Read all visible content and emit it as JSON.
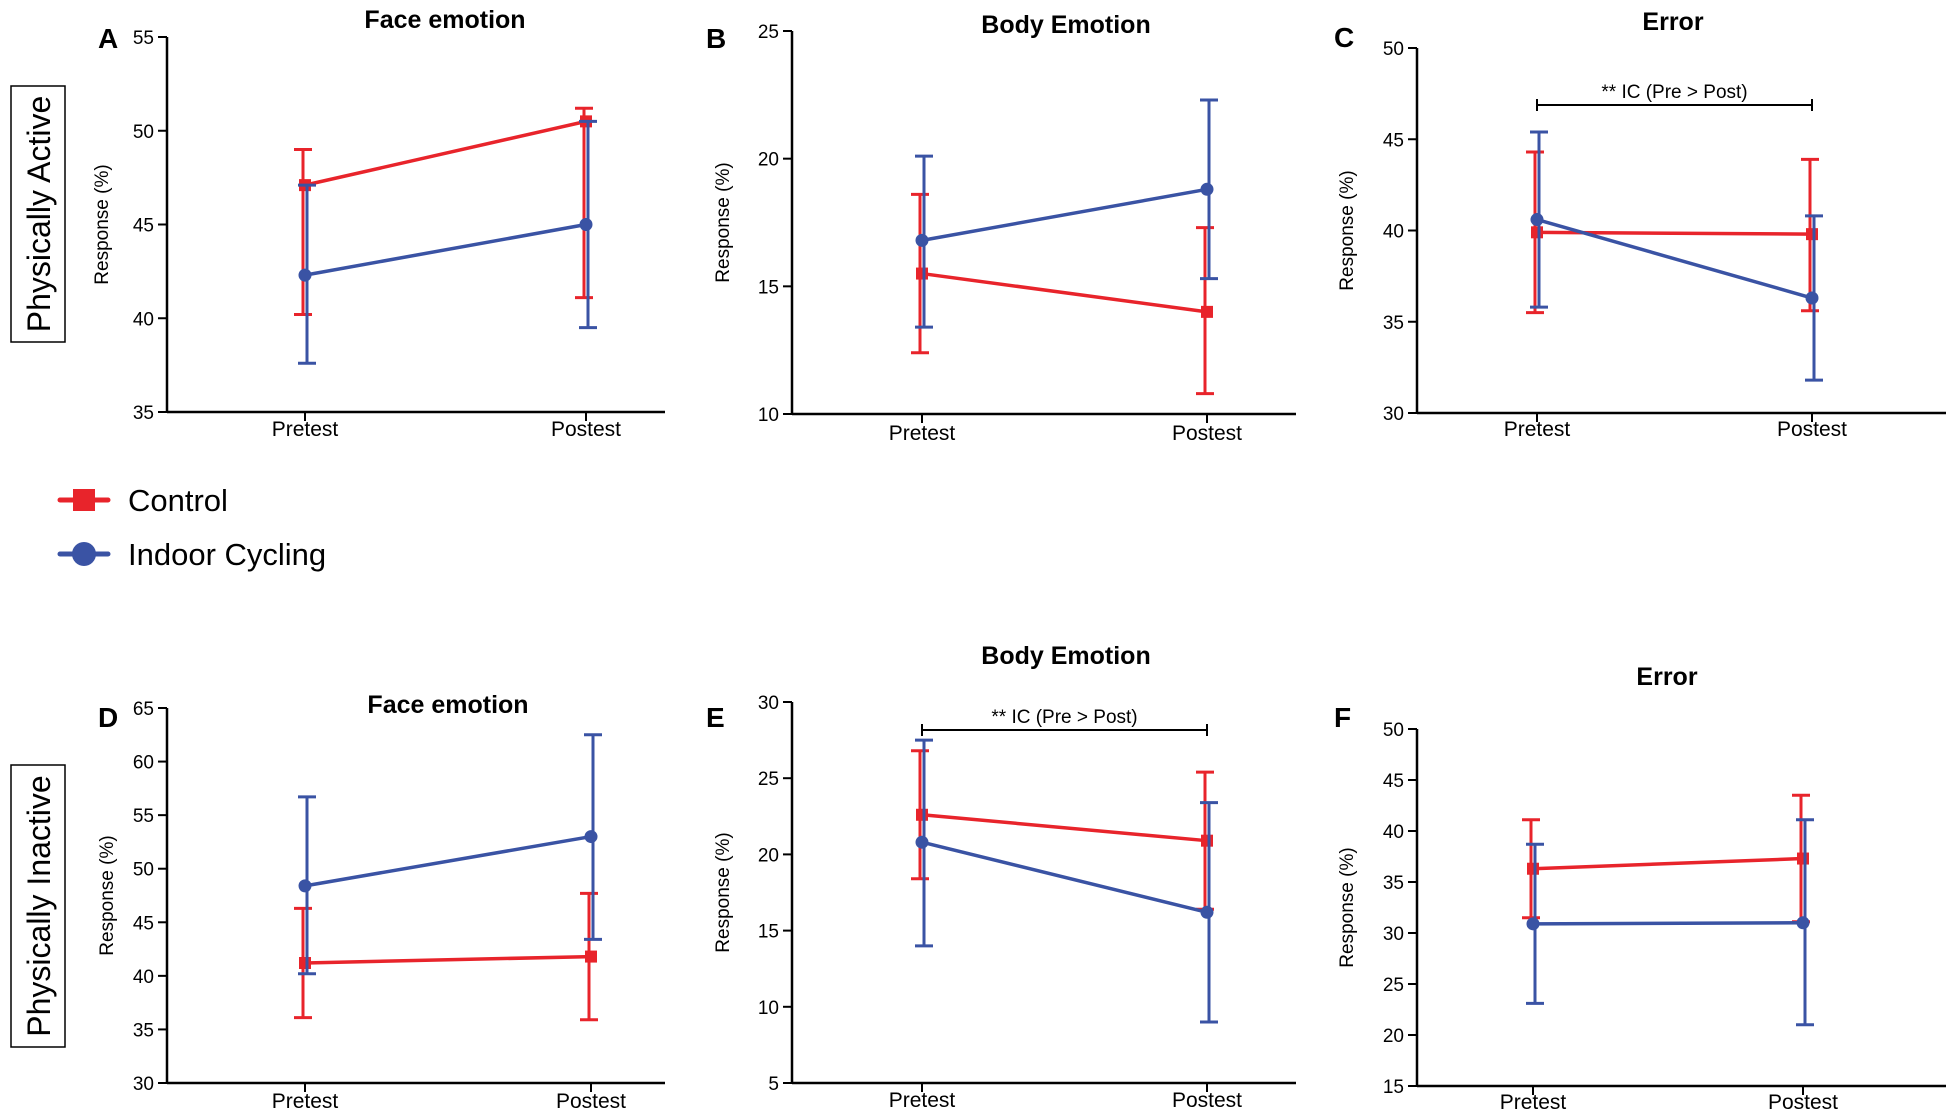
{
  "rows": [
    {
      "label": "Physically Active"
    },
    {
      "label": "Physically Inactive"
    }
  ],
  "legend": [
    {
      "name": "Control",
      "color": "#e8242b",
      "marker": "square"
    },
    {
      "name": "Indoor Cycling",
      "color": "#3a53a4",
      "marker": "circle"
    }
  ],
  "chart_data": [
    {
      "panel": "A",
      "type": "line",
      "title": "Face emotion",
      "ylabel": "Response (%)",
      "categories": [
        "Pretest",
        "Postest"
      ],
      "ylim": [
        35,
        55
      ],
      "yticks": [
        35,
        40,
        45,
        50,
        55
      ],
      "series": [
        {
          "name": "Control",
          "values": [
            47.1,
            50.5
          ],
          "err_low": [
            40.2,
            41.1
          ],
          "err_high": [
            49.0,
            51.2
          ]
        },
        {
          "name": "Indoor Cycling",
          "values": [
            42.3,
            45.0
          ],
          "err_low": [
            37.6,
            39.5
          ],
          "err_high": [
            47.1,
            50.5
          ]
        }
      ]
    },
    {
      "panel": "B",
      "type": "line",
      "title": "Body Emotion",
      "ylabel": "Response (%)",
      "categories": [
        "Pretest",
        "Postest"
      ],
      "ylim": [
        10,
        25
      ],
      "yticks": [
        10,
        15,
        20,
        25
      ],
      "series": [
        {
          "name": "Control",
          "values": [
            15.5,
            14.0
          ],
          "err_low": [
            12.4,
            10.8
          ],
          "err_high": [
            18.6,
            17.3
          ]
        },
        {
          "name": "Indoor Cycling",
          "values": [
            16.8,
            18.8
          ],
          "err_low": [
            13.4,
            15.3
          ],
          "err_high": [
            20.1,
            22.3
          ]
        }
      ]
    },
    {
      "panel": "C",
      "type": "line",
      "title": "Error",
      "ylabel": "Response (%)",
      "categories": [
        "Pretest",
        "Postest"
      ],
      "ylim": [
        30,
        50
      ],
      "yticks": [
        30,
        35,
        40,
        45,
        50
      ],
      "annotation": "** IC (Pre > Post)",
      "series": [
        {
          "name": "Control",
          "values": [
            39.9,
            39.8
          ],
          "err_low": [
            35.5,
            35.6
          ],
          "err_high": [
            44.3,
            43.9
          ]
        },
        {
          "name": "Indoor Cycling",
          "values": [
            40.6,
            36.3
          ],
          "err_low": [
            35.8,
            31.8
          ],
          "err_high": [
            45.4,
            40.8
          ]
        }
      ]
    },
    {
      "panel": "D",
      "type": "line",
      "title": "Face emotion",
      "ylabel": "Response (%)",
      "categories": [
        "Pretest",
        "Postest"
      ],
      "ylim": [
        30,
        65
      ],
      "yticks": [
        30,
        35,
        40,
        45,
        50,
        55,
        60,
        65
      ],
      "series": [
        {
          "name": "Control",
          "values": [
            41.2,
            41.8
          ],
          "err_low": [
            36.1,
            35.9
          ],
          "err_high": [
            46.3,
            47.7
          ]
        },
        {
          "name": "Indoor Cycling",
          "values": [
            48.4,
            53.0
          ],
          "err_low": [
            40.2,
            43.4
          ],
          "err_high": [
            56.7,
            62.5
          ]
        }
      ]
    },
    {
      "panel": "E",
      "type": "line",
      "title": "Body Emotion",
      "ylabel": "Response (%)",
      "categories": [
        "Pretest",
        "Postest"
      ],
      "ylim": [
        5,
        30
      ],
      "yticks": [
        5,
        10,
        15,
        20,
        25,
        30
      ],
      "annotation": "** IC (Pre > Post)",
      "series": [
        {
          "name": "Control",
          "values": [
            22.6,
            20.9
          ],
          "err_low": [
            18.4,
            16.4
          ],
          "err_high": [
            26.8,
            25.4
          ]
        },
        {
          "name": "Indoor Cycling",
          "values": [
            20.8,
            16.2
          ],
          "err_low": [
            14.0,
            9.0
          ],
          "err_high": [
            27.5,
            23.4
          ]
        }
      ]
    },
    {
      "panel": "F",
      "type": "line",
      "title": "Error",
      "ylabel": "Response (%)",
      "categories": [
        "Pretest",
        "Postest"
      ],
      "ylim": [
        15,
        50
      ],
      "yticks": [
        15,
        20,
        25,
        30,
        35,
        40,
        45,
        50
      ],
      "series": [
        {
          "name": "Control",
          "values": [
            36.3,
            37.3
          ],
          "err_low": [
            31.5,
            31.1
          ],
          "err_high": [
            41.1,
            43.5
          ]
        },
        {
          "name": "Indoor Cycling",
          "values": [
            30.9,
            31.0
          ],
          "err_low": [
            23.1,
            21.0
          ],
          "err_high": [
            38.7,
            41.1
          ]
        }
      ]
    }
  ]
}
